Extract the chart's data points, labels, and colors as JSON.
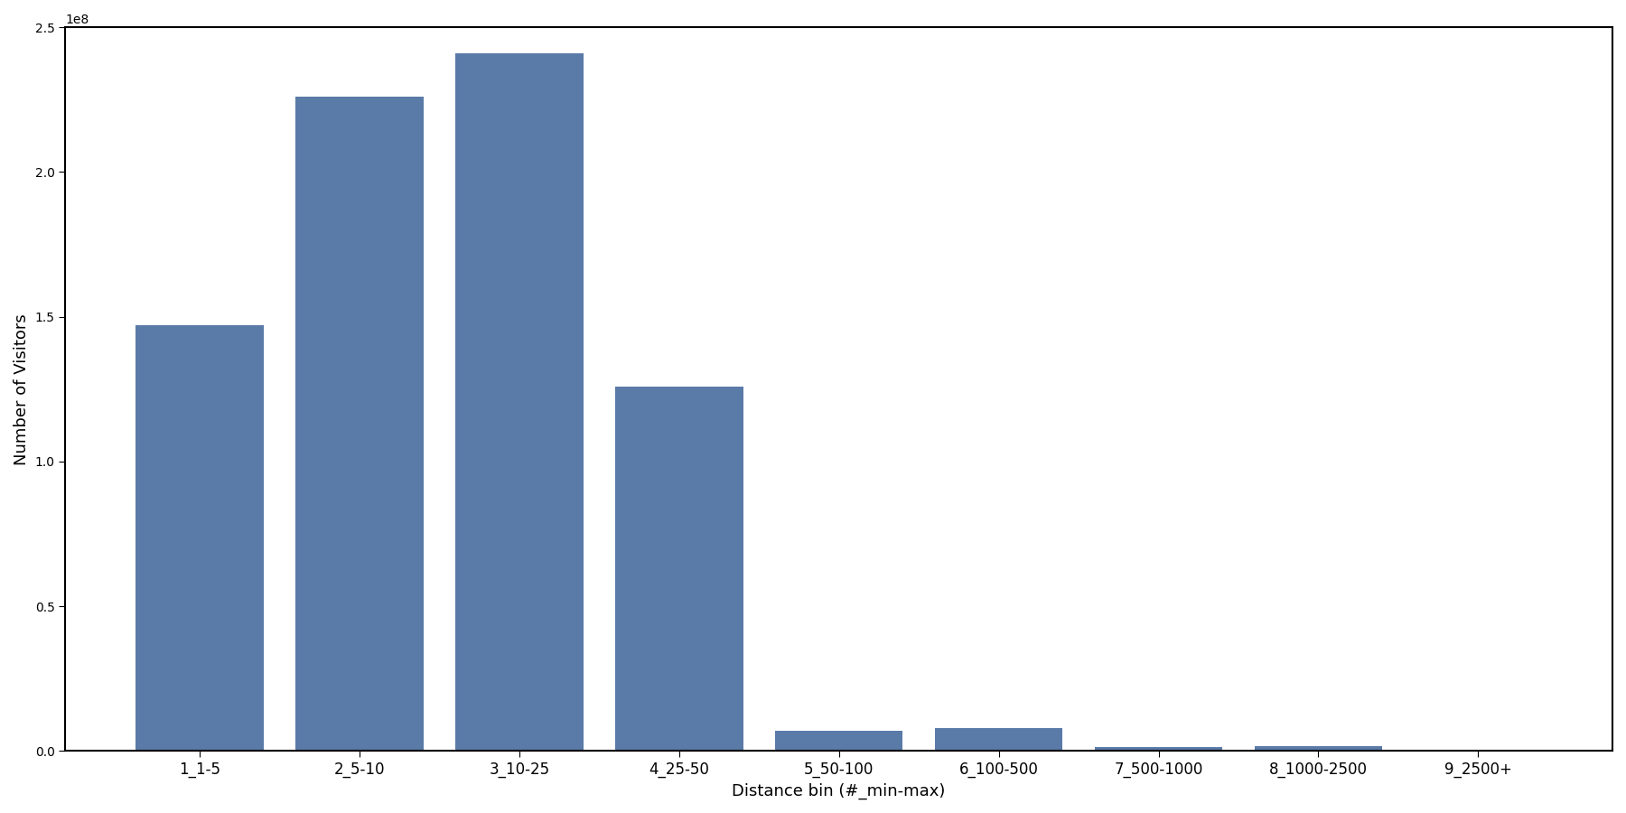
{
  "categories": [
    "1_1-5",
    "2_5-10",
    "3_10-25",
    "4_25-50",
    "5_50-100",
    "6_100-500",
    "7_500-1000",
    "8_1000-2500",
    "9_2500+"
  ],
  "values": [
    147000000,
    226000000,
    241000000,
    126000000,
    7000000,
    8000000,
    1500000,
    1800000,
    200000
  ],
  "bar_color": "#5a7aa8",
  "xlabel": "Distance bin (#_min-max)",
  "ylabel": "Number of Visitors",
  "ylim": [
    0,
    250000000.0
  ],
  "yticks": [
    0.0,
    50000000.0,
    100000000.0,
    150000000.0,
    200000000.0,
    250000000.0
  ],
  "figsize": [
    18.0,
    9.0
  ],
  "dpi": 100,
  "bar_width": 0.8
}
